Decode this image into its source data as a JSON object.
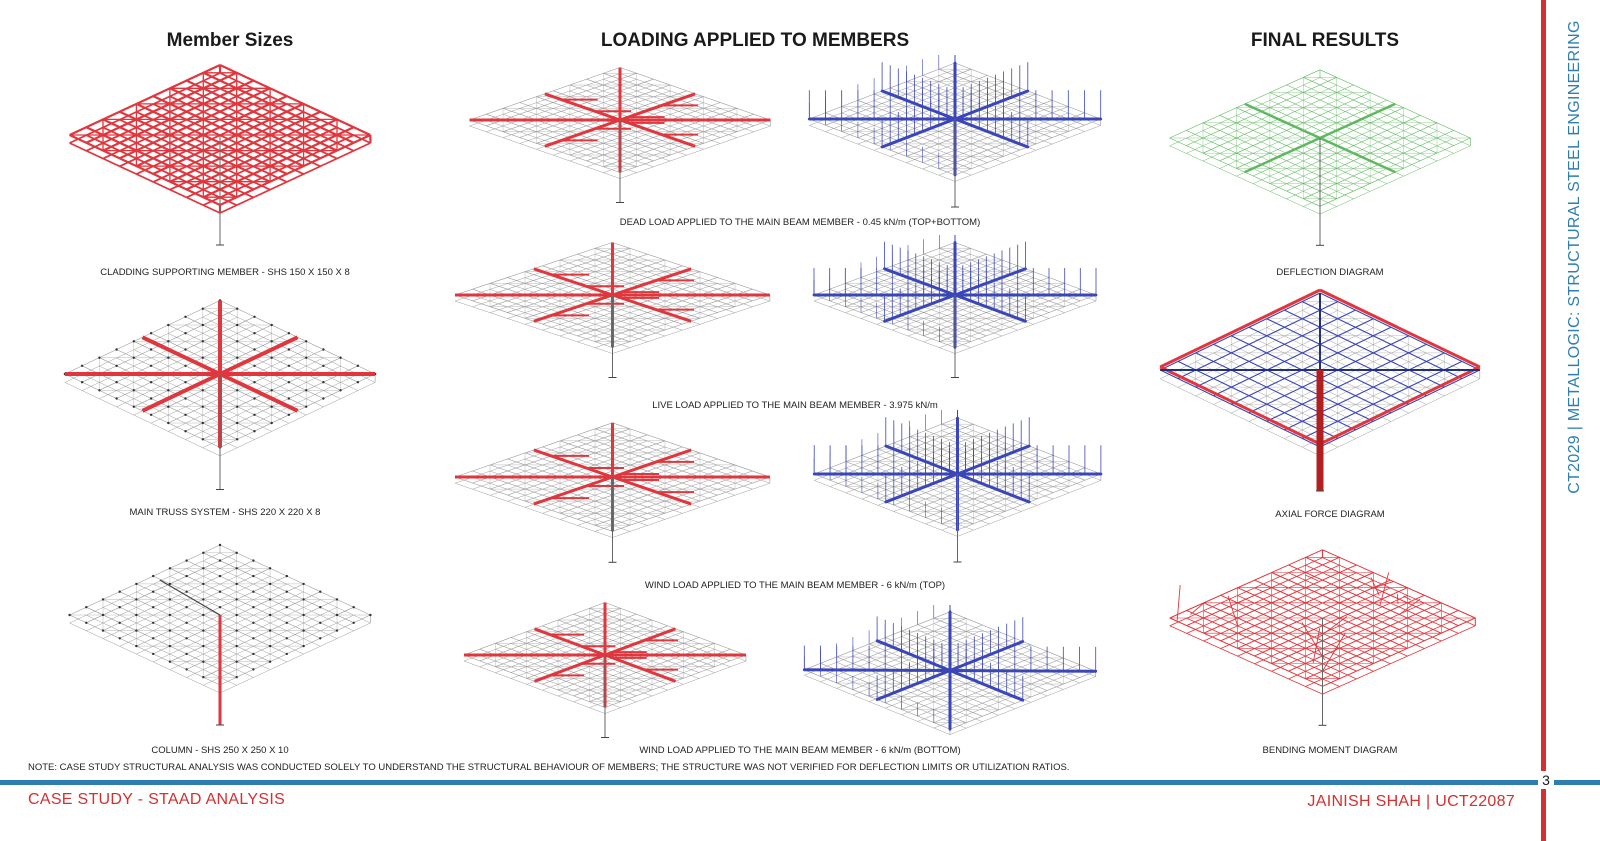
{
  "headings": {
    "member_sizes": "Member Sizes",
    "loading": "LOADING APPLIED TO MEMBERS",
    "final_results": "FINAL RESULTS"
  },
  "member_sizes": [
    {
      "caption": "CLADDING SUPPORTING MEMBER - SHS 150 X 150 X 8"
    },
    {
      "caption": "MAIN TRUSS SYSTEM - SHS 220 X 220 X 8"
    },
    {
      "caption": "COLUMN - SHS 250 X 250 X 10"
    }
  ],
  "loading": [
    {
      "caption": "DEAD LOAD APPLIED TO THE MAIN BEAM MEMBER - 0.45 kN/m (TOP+BOTTOM)"
    },
    {
      "caption": "LIVE LOAD APPLIED TO THE MAIN BEAM MEMBER - 3.975 kN/m"
    },
    {
      "caption": "WIND LOAD APPLIED TO THE MAIN BEAM MEMBER - 6 kN/m (TOP)"
    },
    {
      "caption": "WIND LOAD APPLIED TO THE MAIN BEAM MEMBER - 6 kN/m (BOTTOM)"
    }
  ],
  "results": [
    {
      "caption": "DEFLECTION DIAGRAM"
    },
    {
      "caption": "AXIAL FORCE DIAGRAM"
    },
    {
      "caption": "BENDING MOMENT DIAGRAM"
    }
  ],
  "note": "NOTE: CASE STUDY STRUCTURAL ANALYSIS WAS CONDUCTED SOLELY TO UNDERSTAND THE STRUCTURAL BEHAVIOUR OF MEMBERS; THE STRUCTURE WAS NOT VERIFIED FOR DEFLECTION LIMITS OR UTILIZATION RATIOS.",
  "footer": {
    "left": "CASE STUDY - STAAD ANALYSIS",
    "right": "JAINISH SHAH | UCT22087",
    "page_number": "3"
  },
  "side_title": "CT2029 | METALLOGIC: STRUCTURAL STEEL ENGINEERING",
  "colors": {
    "accent_red": "#d3302f",
    "accent_blue": "#2f7fae",
    "member_red": "#e0363d",
    "load_blue": "#3b46b8",
    "deflection_green": "#5fb85f",
    "mesh_grey": "#9a9a9a"
  }
}
